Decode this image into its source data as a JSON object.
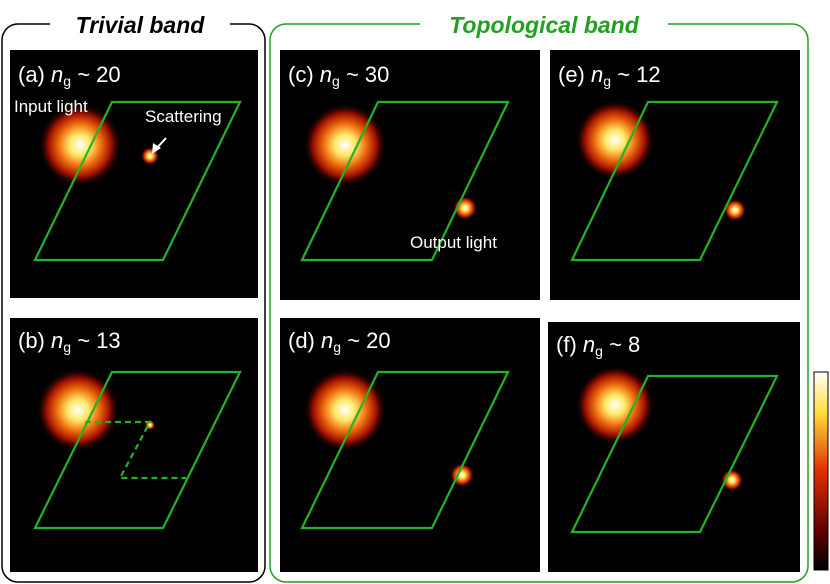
{
  "header": {
    "left": "Trivial band",
    "right": "Topological band"
  },
  "panels": [
    {
      "letter": "(a)",
      "symbol": "n",
      "subscript": "g",
      "value": "~ 20"
    },
    {
      "letter": "(b)",
      "symbol": "n",
      "subscript": "g",
      "value": "~ 13"
    },
    {
      "letter": "(c)",
      "symbol": "n",
      "subscript": "g",
      "value": "~ 30"
    },
    {
      "letter": "(d)",
      "symbol": "n",
      "subscript": "g",
      "value": "~ 20"
    },
    {
      "letter": "(e)",
      "symbol": "n",
      "subscript": "g",
      "value": "~ 12"
    },
    {
      "letter": "(f)",
      "symbol": "n",
      "subscript": "g",
      "value": "~ 8"
    }
  ],
  "annotations": {
    "input": "Input light",
    "scattering": "Scattering",
    "output": "Output light"
  }
}
